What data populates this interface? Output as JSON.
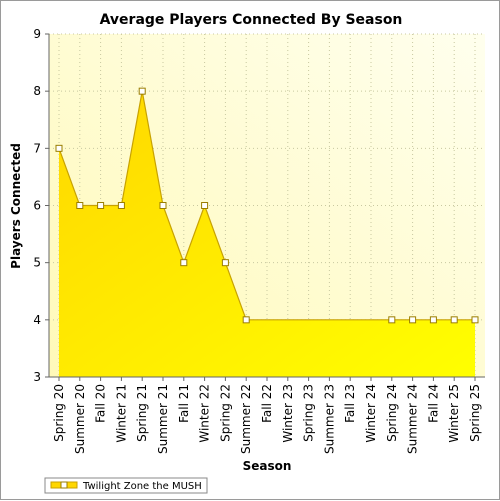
{
  "chart_data": {
    "type": "area",
    "title": "Average Players Connected By Season",
    "xlabel": "Season",
    "ylabel": "Players Connected",
    "ylim": [
      3,
      9
    ],
    "yticks": [
      3,
      4,
      5,
      6,
      7,
      8,
      9
    ],
    "grid": true,
    "legend_position": "bottom-left",
    "categories": [
      "Spring 20",
      "Summer 20",
      "Fall 20",
      "Winter 21",
      "Spring 21",
      "Summer 21",
      "Fall 21",
      "Winter 22",
      "Spring 22",
      "Summer 22",
      "Fall 22",
      "Winter 23",
      "Spring 23",
      "Summer 23",
      "Fall 23",
      "Winter 24",
      "Spring 24",
      "Summer 24",
      "Fall 24",
      "Winter 25",
      "Spring 25"
    ],
    "series": [
      {
        "name": "Twilight Zone the MUSH",
        "values": [
          7,
          6,
          6,
          6,
          8,
          6,
          5,
          6,
          5,
          4,
          4,
          4,
          4,
          4,
          4,
          4,
          4,
          4,
          4,
          4,
          4
        ],
        "markers": [
          true,
          true,
          true,
          true,
          true,
          true,
          true,
          true,
          true,
          true,
          false,
          false,
          false,
          false,
          false,
          false,
          true,
          true,
          true,
          true,
          true
        ]
      }
    ],
    "colors": {
      "fill_top": "#ffd700",
      "fill_bottom": "#ffff00",
      "line": "#c8a200",
      "marker_stroke": "#9a7d00",
      "plot_bg_left": "#fff9b8",
      "plot_bg_right": "#ffffee",
      "grid": "#c8c8a0"
    }
  }
}
